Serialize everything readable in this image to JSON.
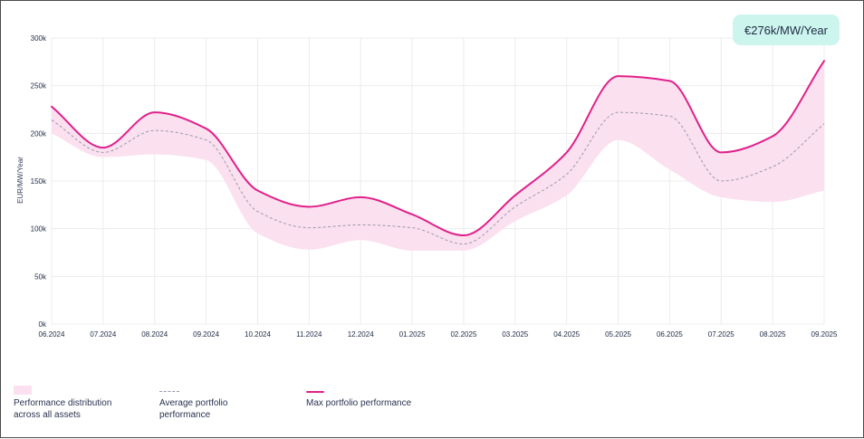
{
  "badge": {
    "text": "€276k/MW/Year"
  },
  "legend": {
    "band_label_line1": "Performance distribution",
    "band_label_line2": "across all assets",
    "average_label_line1": "Average portfolio",
    "average_label_line2": "performance",
    "max_label": "Max portfolio performance"
  },
  "colors": {
    "max_line": "#e0208a",
    "band_fill": "#fbe0ef",
    "average_line": "#9a9aa8",
    "grid": "#ececec",
    "badge_bg": "#ccf5ee"
  },
  "chart_data": {
    "type": "area",
    "title": "",
    "xlabel": "",
    "ylabel": "EUR/MW/Year",
    "ylim": [
      0,
      300000
    ],
    "y_ticks": [
      0,
      50000,
      100000,
      150000,
      200000,
      250000,
      300000
    ],
    "y_tick_labels": [
      "0k",
      "50k",
      "100k",
      "150k",
      "200k",
      "250k",
      "300k"
    ],
    "categories": [
      "06.2024",
      "07.2024",
      "08.2024",
      "09.2024",
      "10.2024",
      "11.2024",
      "12.2024",
      "01.2025",
      "02.2025",
      "03.2025",
      "04.2025",
      "05.2025",
      "06.2025",
      "07.2025",
      "08.2025",
      "09.2025"
    ],
    "grid": true,
    "series": [
      {
        "name": "Max portfolio performance",
        "kind": "line",
        "values": [
          228000,
          185000,
          222000,
          205000,
          140000,
          123000,
          133000,
          115000,
          93000,
          135000,
          180000,
          260000,
          255000,
          180000,
          197000,
          276000
        ]
      },
      {
        "name": "Average portfolio performance",
        "kind": "dashed",
        "values": [
          214000,
          180000,
          203000,
          193000,
          118000,
          101000,
          104000,
          101000,
          84000,
          123000,
          157000,
          222000,
          218000,
          150000,
          165000,
          210000
        ]
      },
      {
        "name": "Performance distribution across all assets (lower)",
        "kind": "band-lower",
        "values": [
          200000,
          175000,
          178000,
          172000,
          95000,
          78000,
          88000,
          77000,
          77000,
          108000,
          135000,
          193000,
          162000,
          133000,
          128000,
          140000
        ]
      },
      {
        "name": "Performance distribution across all assets (upper)",
        "kind": "band-upper",
        "values": [
          228000,
          185000,
          222000,
          205000,
          140000,
          123000,
          133000,
          115000,
          93000,
          135000,
          180000,
          260000,
          255000,
          180000,
          197000,
          276000
        ]
      }
    ]
  }
}
